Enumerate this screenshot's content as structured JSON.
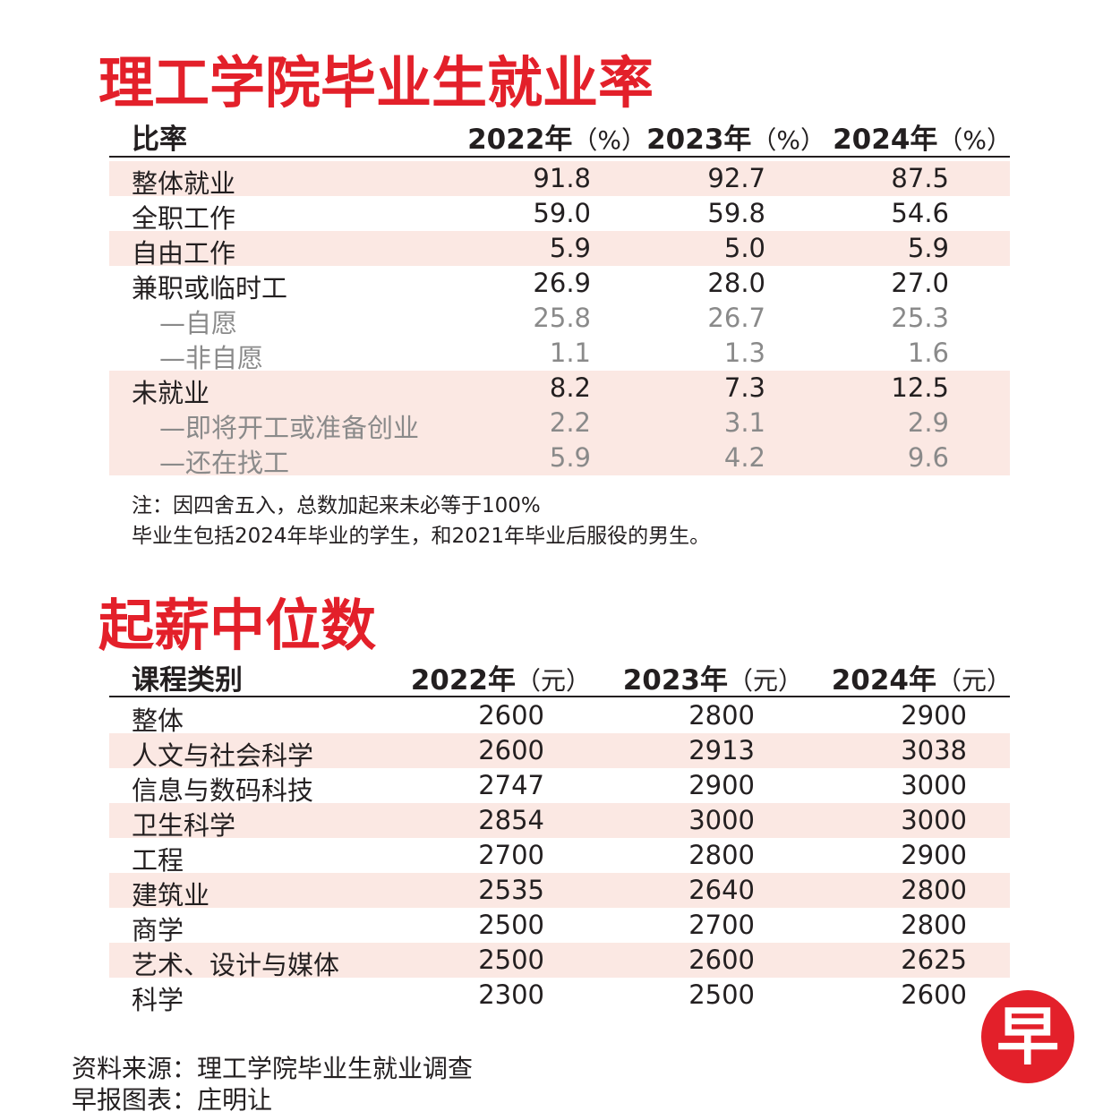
{
  "table1": {
    "title": "理工学院毕业生就业率",
    "headers": [
      "比率",
      {
        "year": "2022年",
        "unit": "（%）"
      },
      {
        "year": "2023年",
        "unit": "（%）"
      },
      {
        "year": "2024年",
        "unit": "（%）"
      }
    ],
    "rows": [
      [
        "整体就业",
        "91.8",
        "92.7",
        "87.5"
      ],
      [
        "全职工作",
        "59.0",
        "59.8",
        "54.6"
      ],
      [
        "自由工作",
        "5.9",
        "5.0",
        "5.9"
      ],
      [
        "兼职或临时工",
        "26.9",
        "28.0",
        "27.0"
      ],
      [
        "—自愿",
        "25.8",
        "26.7",
        "25.3"
      ],
      [
        "—非自愿",
        "1.1",
        "1.3",
        "1.6"
      ],
      [
        "未就业",
        "8.2",
        "7.3",
        "12.5"
      ],
      [
        "—即将开工或准备创业",
        "2.2",
        "3.1",
        "2.9"
      ],
      [
        "—还在找工",
        "5.9",
        "4.2",
        "9.6"
      ]
    ],
    "notes": [
      "注：因四舍五入，总数加起来未必等于100%",
      "毕业生包括2024年毕业的学生，和2021年毕业后服役的男生。"
    ]
  },
  "table2": {
    "title": "起薪中位数",
    "headers": [
      "课程类别",
      {
        "year": "2022年",
        "unit": "（元）"
      },
      {
        "year": "2023年",
        "unit": "（元）"
      },
      {
        "year": "2024年",
        "unit": "（元）"
      }
    ],
    "rows": [
      [
        "整体",
        "2600",
        "2800",
        "2900"
      ],
      [
        "人文与社会科学",
        "2600",
        "2913",
        "3038"
      ],
      [
        "信息与数码科技",
        "2747",
        "2900",
        "3000"
      ],
      [
        "卫生科学",
        "2854",
        "3000",
        "3000"
      ],
      [
        "工程",
        "2700",
        "2800",
        "2900"
      ],
      [
        "建筑业",
        "2535",
        "2640",
        "2800"
      ],
      [
        "商学",
        "2500",
        "2700",
        "2800"
      ],
      [
        "艺术、设计与媒体",
        "2500",
        "2600",
        "2625"
      ],
      [
        "科学",
        "2300",
        "2500",
        "2600"
      ]
    ]
  },
  "source": "资料来源：理工学院毕业生就业调查",
  "credit": "早报图表：庄明让",
  "logo": "早"
}
